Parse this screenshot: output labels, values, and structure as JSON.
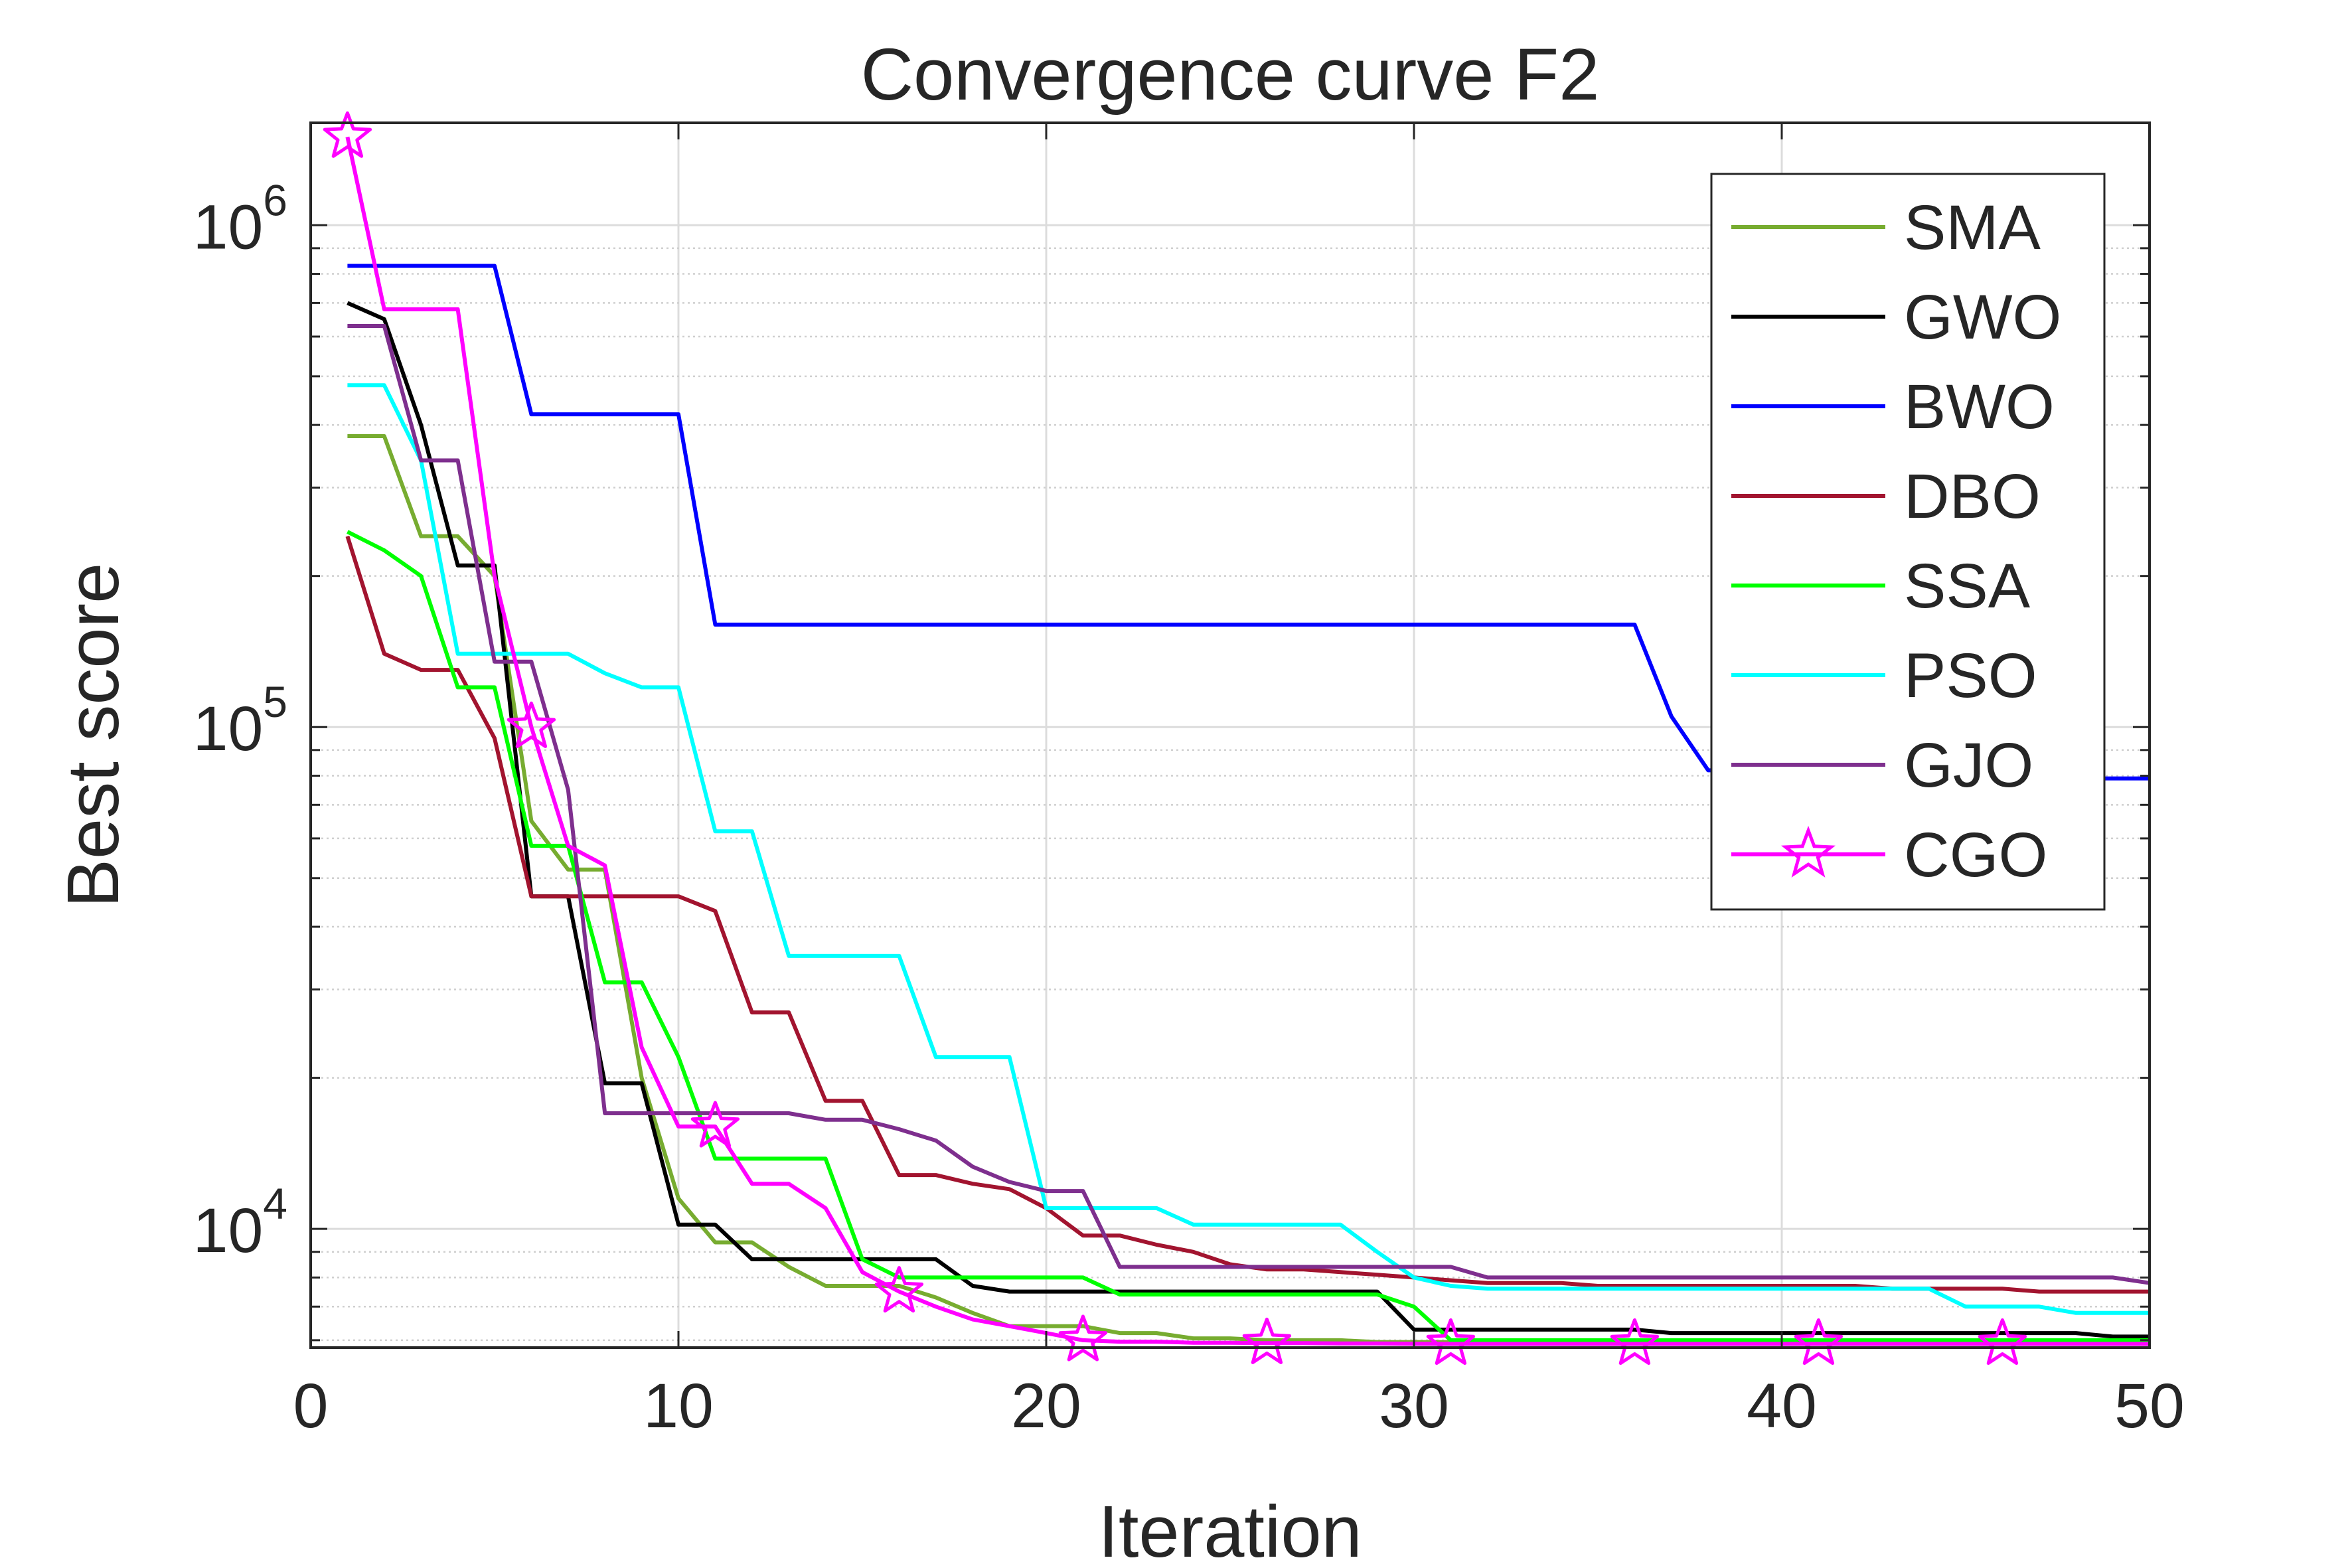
{
  "chart_data": {
    "type": "line",
    "title": "Convergence curve F2",
    "xlabel": "Iteration",
    "ylabel": "Best score",
    "xscale": "linear",
    "yscale": "log",
    "xlim": [
      0,
      50
    ],
    "ylim": [
      5800,
      1600000
    ],
    "grid": true,
    "legend_location": "top-right",
    "xticks": [
      {
        "value": 0,
        "label": "0"
      },
      {
        "value": 10,
        "label": "10"
      },
      {
        "value": 20,
        "label": "20"
      },
      {
        "value": 30,
        "label": "30"
      },
      {
        "value": 40,
        "label": "40"
      },
      {
        "value": 50,
        "label": "50"
      }
    ],
    "yticks": [
      {
        "value": 10000,
        "base": "10",
        "exp": "4"
      },
      {
        "value": 100000,
        "base": "10",
        "exp": "5"
      },
      {
        "value": 1000000,
        "base": "10",
        "exp": "6"
      }
    ],
    "series": [
      {
        "name": "SMA",
        "color": "#77AC30",
        "marker": "",
        "x": [
          1,
          2,
          3,
          4,
          5,
          6,
          7,
          8,
          9,
          10,
          11,
          12,
          13,
          14,
          15,
          16,
          17,
          18,
          19,
          20,
          21,
          22,
          23,
          24,
          25,
          26,
          27,
          28,
          29,
          30,
          31,
          32,
          33,
          34,
          35,
          36,
          37,
          38,
          39,
          40,
          41,
          42,
          43,
          44,
          45,
          46,
          47,
          48,
          49,
          50
        ],
        "y": [
          380000,
          380000,
          240000,
          240000,
          200000,
          65000,
          52000,
          52000,
          20000,
          11500,
          9400,
          9400,
          8400,
          7700,
          7700,
          7700,
          7300,
          6800,
          6400,
          6400,
          6400,
          6200,
          6200,
          6050,
          6050,
          6000,
          6000,
          6000,
          5950,
          5950,
          5950,
          5950,
          5950,
          5950,
          5950,
          5950,
          5950,
          5950,
          5950,
          5950,
          5950,
          5950,
          5950,
          5950,
          5950,
          5950,
          5950,
          5950,
          5950,
          5950
        ]
      },
      {
        "name": "GWO",
        "color": "#000000",
        "marker": "",
        "x": [
          1,
          2,
          3,
          4,
          5,
          6,
          7,
          8,
          9,
          10,
          11,
          12,
          13,
          14,
          15,
          16,
          17,
          18,
          19,
          20,
          21,
          22,
          23,
          24,
          25,
          26,
          27,
          28,
          29,
          30,
          31,
          32,
          33,
          34,
          35,
          36,
          37,
          38,
          39,
          40,
          41,
          42,
          43,
          44,
          45,
          46,
          47,
          48,
          49,
          50
        ],
        "y": [
          700000,
          650000,
          400000,
          210000,
          210000,
          46000,
          46000,
          19500,
          19500,
          10200,
          10200,
          8700,
          8700,
          8700,
          8700,
          8700,
          8700,
          7700,
          7500,
          7500,
          7500,
          7500,
          7500,
          7500,
          7500,
          7500,
          7500,
          7500,
          7500,
          6300,
          6300,
          6300,
          6300,
          6300,
          6300,
          6300,
          6200,
          6200,
          6200,
          6200,
          6200,
          6200,
          6200,
          6200,
          6200,
          6200,
          6200,
          6200,
          6100,
          6100
        ]
      },
      {
        "name": "BWO",
        "color": "#0000FF",
        "marker": "",
        "x": [
          1,
          2,
          3,
          4,
          5,
          6,
          7,
          8,
          9,
          10,
          11,
          12,
          13,
          14,
          15,
          16,
          17,
          18,
          19,
          20,
          21,
          22,
          23,
          24,
          25,
          26,
          27,
          28,
          29,
          30,
          31,
          32,
          33,
          34,
          35,
          36,
          37,
          38,
          39,
          40,
          41,
          42,
          43,
          44,
          45,
          46,
          47,
          48,
          49,
          50
        ],
        "y": [
          830000,
          830000,
          830000,
          830000,
          830000,
          420000,
          420000,
          420000,
          420000,
          420000,
          160000,
          160000,
          160000,
          160000,
          160000,
          160000,
          160000,
          160000,
          160000,
          160000,
          160000,
          160000,
          160000,
          160000,
          160000,
          160000,
          160000,
          160000,
          160000,
          160000,
          160000,
          160000,
          160000,
          160000,
          160000,
          160000,
          105000,
          82000,
          82000,
          82000,
          82000,
          82000,
          82000,
          82000,
          82000,
          79000,
          79000,
          79000,
          79000,
          79000
        ]
      },
      {
        "name": "DBO",
        "color": "#A2142F",
        "marker": "",
        "x": [
          1,
          2,
          3,
          4,
          5,
          6,
          7,
          8,
          9,
          10,
          11,
          12,
          13,
          14,
          15,
          16,
          17,
          18,
          19,
          20,
          21,
          22,
          23,
          24,
          25,
          26,
          27,
          28,
          29,
          30,
          31,
          32,
          33,
          34,
          35,
          36,
          37,
          38,
          39,
          40,
          41,
          42,
          43,
          44,
          45,
          46,
          47,
          48,
          49,
          50
        ],
        "y": [
          240000,
          140000,
          130000,
          130000,
          95000,
          46000,
          46000,
          46000,
          46000,
          46000,
          43000,
          27000,
          27000,
          18000,
          18000,
          12800,
          12800,
          12300,
          12000,
          11000,
          9700,
          9700,
          9300,
          9000,
          8500,
          8300,
          8300,
          8200,
          8100,
          8000,
          7900,
          7800,
          7800,
          7800,
          7700,
          7700,
          7700,
          7700,
          7700,
          7700,
          7700,
          7700,
          7600,
          7600,
          7600,
          7600,
          7500,
          7500,
          7500,
          7500
        ]
      },
      {
        "name": "SSA",
        "color": "#00FF00",
        "marker": "",
        "x": [
          1,
          2,
          3,
          4,
          5,
          6,
          7,
          8,
          9,
          10,
          11,
          12,
          13,
          14,
          15,
          16,
          17,
          18,
          19,
          20,
          21,
          22,
          23,
          24,
          25,
          26,
          27,
          28,
          29,
          30,
          31,
          32,
          33,
          34,
          35,
          36,
          37,
          38,
          39,
          40,
          41,
          42,
          43,
          44,
          45,
          46,
          47,
          48,
          49,
          50
        ],
        "y": [
          245000,
          225000,
          200000,
          120000,
          120000,
          58000,
          58000,
          31000,
          31000,
          22000,
          13800,
          13800,
          13800,
          13800,
          8700,
          8000,
          8000,
          8000,
          8000,
          8000,
          8000,
          7400,
          7400,
          7400,
          7400,
          7400,
          7400,
          7400,
          7400,
          7000,
          6000,
          6000,
          6000,
          6000,
          6000,
          6000,
          6000,
          6000,
          6000,
          6000,
          6000,
          6000,
          6000,
          6000,
          6000,
          6000,
          6000,
          6000,
          6000,
          6000
        ]
      },
      {
        "name": "PSO",
        "color": "#00FFFF",
        "marker": "",
        "x": [
          1,
          2,
          3,
          4,
          5,
          6,
          7,
          8,
          9,
          10,
          11,
          12,
          13,
          14,
          15,
          16,
          17,
          18,
          19,
          20,
          21,
          22,
          23,
          24,
          25,
          26,
          27,
          28,
          29,
          30,
          31,
          32,
          33,
          34,
          35,
          36,
          37,
          38,
          39,
          40,
          41,
          42,
          43,
          44,
          45,
          46,
          47,
          48,
          49,
          50
        ],
        "y": [
          480000,
          480000,
          340000,
          140000,
          140000,
          140000,
          140000,
          128000,
          120000,
          120000,
          62000,
          62000,
          35000,
          35000,
          35000,
          35000,
          22000,
          22000,
          22000,
          11000,
          11000,
          11000,
          11000,
          10200,
          10200,
          10200,
          10200,
          10200,
          9000,
          8000,
          7700,
          7600,
          7600,
          7600,
          7600,
          7600,
          7600,
          7600,
          7600,
          7600,
          7600,
          7600,
          7600,
          7600,
          7000,
          7000,
          7000,
          6800,
          6800,
          6800
        ]
      },
      {
        "name": "GJO",
        "color": "#7E2F8E",
        "marker": "",
        "x": [
          1,
          2,
          3,
          4,
          5,
          6,
          7,
          8,
          9,
          10,
          11,
          12,
          13,
          14,
          15,
          16,
          17,
          18,
          19,
          20,
          21,
          22,
          23,
          24,
          25,
          26,
          27,
          28,
          29,
          30,
          31,
          32,
          33,
          34,
          35,
          36,
          37,
          38,
          39,
          40,
          41,
          42,
          43,
          44,
          45,
          46,
          47,
          48,
          49,
          50
        ],
        "y": [
          630000,
          630000,
          340000,
          340000,
          135000,
          135000,
          75000,
          17000,
          17000,
          17000,
          17000,
          17000,
          17000,
          16500,
          16500,
          15800,
          15000,
          13300,
          12400,
          11900,
          11900,
          8400,
          8400,
          8400,
          8400,
          8400,
          8400,
          8400,
          8400,
          8400,
          8400,
          8000,
          8000,
          8000,
          8000,
          8000,
          8000,
          8000,
          8000,
          8000,
          8000,
          8000,
          8000,
          8000,
          8000,
          8000,
          8000,
          8000,
          8000,
          7800
        ]
      },
      {
        "name": "CGO",
        "color": "#FF00FF",
        "marker": "star",
        "x": [
          1,
          2,
          3,
          4,
          5,
          6,
          7,
          8,
          9,
          10,
          11,
          12,
          13,
          14,
          15,
          16,
          17,
          18,
          19,
          20,
          21,
          22,
          23,
          24,
          25,
          26,
          27,
          28,
          29,
          30,
          31,
          32,
          33,
          34,
          35,
          36,
          37,
          38,
          39,
          40,
          41,
          42,
          43,
          44,
          45,
          46,
          47,
          48,
          49,
          50
        ],
        "y": [
          1500000,
          680000,
          680000,
          680000,
          200000,
          100000,
          58000,
          53000,
          23000,
          16000,
          16000,
          12300,
          12300,
          11000,
          8200,
          7500,
          7000,
          6600,
          6400,
          6200,
          6000,
          5960,
          5960,
          5930,
          5930,
          5920,
          5920,
          5910,
          5910,
          5905,
          5900,
          5900,
          5900,
          5900,
          5900,
          5900,
          5900,
          5900,
          5900,
          5900,
          5900,
          5900,
          5900,
          5900,
          5900,
          5900,
          5900,
          5900,
          5900,
          5900
        ]
      }
    ]
  }
}
